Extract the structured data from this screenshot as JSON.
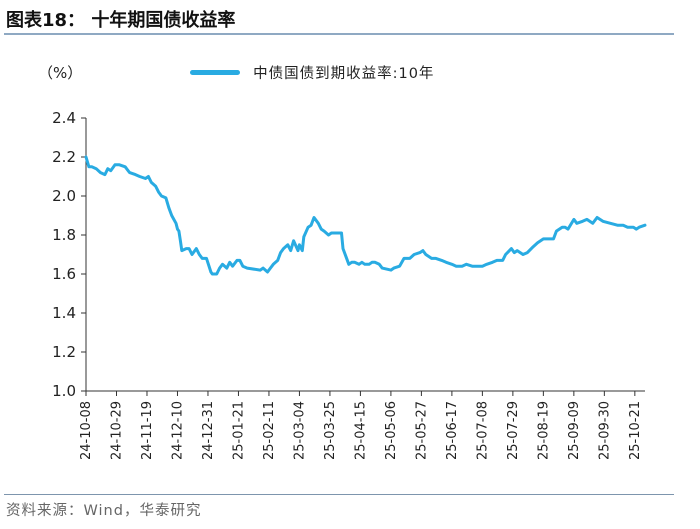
{
  "header": {
    "title": "图表18：  十年期国债收益率"
  },
  "footer": {
    "source": "资料来源：Wind，华泰研究"
  },
  "chart_data": {
    "type": "line",
    "title": "",
    "ylabel": "（%）",
    "xlabel": "",
    "ylim": [
      1.0,
      2.4
    ],
    "yticks": [
      "1.0",
      "1.2",
      "1.4",
      "1.6",
      "1.8",
      "2.0",
      "2.2",
      "2.4"
    ],
    "ytick_values": [
      1.0,
      1.2,
      1.4,
      1.6,
      1.8,
      2.0,
      2.2,
      2.4
    ],
    "xlim": [
      "2024-10-08",
      "2025-10-28"
    ],
    "xticks": [
      "24-10-08",
      "24-10-29",
      "24-11-19",
      "24-12-10",
      "24-12-31",
      "25-01-21",
      "25-02-11",
      "25-03-04",
      "25-03-25",
      "25-04-15",
      "25-05-06",
      "25-05-27",
      "25-06-17",
      "25-07-08",
      "25-07-29",
      "25-08-19",
      "25-09-09",
      "25-09-30",
      "25-10-21"
    ],
    "xtick_dates": [
      "2024-10-08",
      "2024-10-29",
      "2024-11-19",
      "2024-12-10",
      "2024-12-31",
      "2025-01-21",
      "2025-02-11",
      "2025-03-04",
      "2025-03-25",
      "2025-04-15",
      "2025-05-06",
      "2025-05-27",
      "2025-06-17",
      "2025-07-08",
      "2025-07-29",
      "2025-08-19",
      "2025-09-09",
      "2025-09-30",
      "2025-10-21"
    ],
    "grid": false,
    "legend_position": "top",
    "line_color": "#29abe2",
    "series": [
      {
        "name": "中债国债到期收益率:10年",
        "x": [
          "2024-10-08",
          "2024-10-10",
          "2024-10-12",
          "2024-10-15",
          "2024-10-18",
          "2024-10-21",
          "2024-10-23",
          "2024-10-25",
          "2024-10-28",
          "2024-10-31",
          "2024-11-04",
          "2024-11-07",
          "2024-11-11",
          "2024-11-14",
          "2024-11-18",
          "2024-11-20",
          "2024-11-22",
          "2024-11-25",
          "2024-11-27",
          "2024-11-29",
          "2024-12-02",
          "2024-12-04",
          "2024-12-06",
          "2024-12-09",
          "2024-12-10",
          "2024-12-11",
          "2024-12-12",
          "2024-12-13",
          "2024-12-16",
          "2024-12-18",
          "2024-12-20",
          "2024-12-23",
          "2024-12-25",
          "2024-12-27",
          "2024-12-30",
          "2025-01-02",
          "2025-01-03",
          "2025-01-06",
          "2025-01-08",
          "2025-01-10",
          "2025-01-13",
          "2025-01-15",
          "2025-01-17",
          "2025-01-20",
          "2025-01-22",
          "2025-01-24",
          "2025-01-27",
          "2025-02-05",
          "2025-02-07",
          "2025-02-10",
          "2025-02-12",
          "2025-02-14",
          "2025-02-17",
          "2025-02-19",
          "2025-02-21",
          "2025-02-24",
          "2025-02-26",
          "2025-02-28",
          "2025-03-03",
          "2025-03-04",
          "2025-03-06",
          "2025-03-07",
          "2025-03-10",
          "2025-03-12",
          "2025-03-14",
          "2025-03-17",
          "2025-03-19",
          "2025-03-21",
          "2025-03-24",
          "2025-03-26",
          "2025-03-28",
          "2025-03-31",
          "2025-04-02",
          "2025-04-03",
          "2025-04-07",
          "2025-04-09",
          "2025-04-11",
          "2025-04-14",
          "2025-04-16",
          "2025-04-18",
          "2025-04-21",
          "2025-04-23",
          "2025-04-25",
          "2025-04-28",
          "2025-04-30",
          "2025-05-06",
          "2025-05-08",
          "2025-05-12",
          "2025-05-15",
          "2025-05-19",
          "2025-05-22",
          "2025-05-26",
          "2025-05-28",
          "2025-05-30",
          "2025-06-03",
          "2025-06-06",
          "2025-06-10",
          "2025-06-13",
          "2025-06-17",
          "2025-06-20",
          "2025-06-24",
          "2025-06-27",
          "2025-07-01",
          "2025-07-04",
          "2025-07-08",
          "2025-07-11",
          "2025-07-15",
          "2025-07-18",
          "2025-07-22",
          "2025-07-24",
          "2025-07-28",
          "2025-07-30",
          "2025-08-01",
          "2025-08-05",
          "2025-08-08",
          "2025-08-12",
          "2025-08-15",
          "2025-08-19",
          "2025-08-22",
          "2025-08-26",
          "2025-08-28",
          "2025-09-01",
          "2025-09-03",
          "2025-09-05",
          "2025-09-09",
          "2025-09-11",
          "2025-09-15",
          "2025-09-18",
          "2025-09-22",
          "2025-09-25",
          "2025-09-29",
          "2025-10-09",
          "2025-10-13",
          "2025-10-16",
          "2025-10-20",
          "2025-10-22",
          "2025-10-24",
          "2025-10-28"
        ],
        "y": [
          2.2,
          2.15,
          2.15,
          2.14,
          2.12,
          2.11,
          2.14,
          2.13,
          2.16,
          2.16,
          2.15,
          2.12,
          2.11,
          2.1,
          2.09,
          2.1,
          2.07,
          2.05,
          2.02,
          2.0,
          1.99,
          1.94,
          1.9,
          1.86,
          1.83,
          1.82,
          1.77,
          1.72,
          1.73,
          1.73,
          1.7,
          1.73,
          1.7,
          1.68,
          1.68,
          1.61,
          1.6,
          1.6,
          1.63,
          1.65,
          1.63,
          1.66,
          1.64,
          1.67,
          1.67,
          1.64,
          1.63,
          1.62,
          1.63,
          1.61,
          1.63,
          1.65,
          1.67,
          1.71,
          1.73,
          1.75,
          1.72,
          1.77,
          1.72,
          1.75,
          1.72,
          1.79,
          1.84,
          1.85,
          1.89,
          1.86,
          1.83,
          1.82,
          1.8,
          1.81,
          1.81,
          1.81,
          1.81,
          1.73,
          1.65,
          1.66,
          1.66,
          1.65,
          1.66,
          1.65,
          1.65,
          1.66,
          1.66,
          1.65,
          1.63,
          1.62,
          1.63,
          1.64,
          1.68,
          1.68,
          1.7,
          1.71,
          1.72,
          1.7,
          1.68,
          1.68,
          1.67,
          1.66,
          1.65,
          1.64,
          1.64,
          1.65,
          1.64,
          1.64,
          1.64,
          1.65,
          1.66,
          1.67,
          1.67,
          1.7,
          1.73,
          1.71,
          1.72,
          1.7,
          1.71,
          1.74,
          1.76,
          1.78,
          1.78,
          1.78,
          1.82,
          1.84,
          1.84,
          1.83,
          1.88,
          1.86,
          1.87,
          1.88,
          1.86,
          1.89,
          1.87,
          1.85,
          1.85,
          1.84,
          1.84,
          1.83,
          1.84,
          1.85
        ]
      }
    ]
  }
}
